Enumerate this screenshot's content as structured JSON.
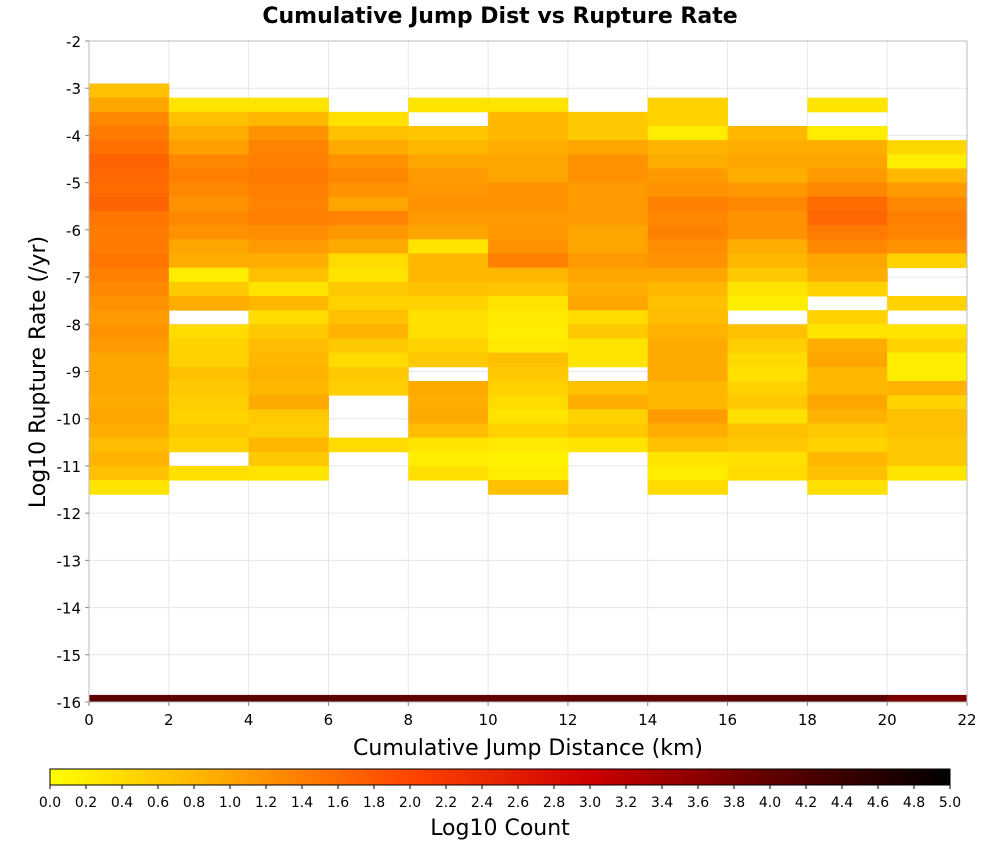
{
  "chart_data": {
    "type": "heatmap",
    "title": "Cumulative Jump Dist vs Rupture Rate",
    "xlabel": "Cumulative Jump Distance (km)",
    "ylabel": "Log10 Rupture Rate (/yr)",
    "colorbar_label": "Log10 Count",
    "xlim": [
      0,
      22
    ],
    "ylim": [
      -16,
      -2
    ],
    "x_ticks": [
      "0",
      "2",
      "4",
      "6",
      "8",
      "10",
      "12",
      "14",
      "16",
      "18",
      "20",
      "22"
    ],
    "y_ticks": [
      "-2",
      "-3",
      "-4",
      "-5",
      "-6",
      "-7",
      "-8",
      "-9",
      "-10",
      "-11",
      "-12",
      "-13",
      "-14",
      "-15",
      "-16"
    ],
    "colorbar_ticks": [
      "0.0",
      "0.2",
      "0.4",
      "0.6",
      "0.8",
      "1.0",
      "1.2",
      "1.4",
      "1.6",
      "1.8",
      "2.0",
      "2.2",
      "2.4",
      "2.6",
      "2.8",
      "3.0",
      "3.2",
      "3.4",
      "3.6",
      "3.8",
      "4.0",
      "4.2",
      "4.4",
      "4.6",
      "4.8",
      "5.0"
    ],
    "colorbar_range": [
      0,
      5
    ],
    "grid": true,
    "colormap": [
      "#ffff00",
      "#ffa500",
      "#ff4500",
      "#cc0000",
      "#600000",
      "#000000"
    ],
    "x_bin_width": 2,
    "y_bin_height": 0.3,
    "columns": [
      {
        "x": 0,
        "values": [
          [
            -3.05,
            0.7
          ],
          [
            -3.35,
            1.0
          ],
          [
            -3.65,
            1.3
          ],
          [
            -3.95,
            1.45
          ],
          [
            -4.25,
            1.55
          ],
          [
            -4.55,
            1.7
          ],
          [
            -4.85,
            1.65
          ],
          [
            -5.15,
            1.6
          ],
          [
            -5.45,
            1.7
          ],
          [
            -5.75,
            1.5
          ],
          [
            -6.05,
            1.45
          ],
          [
            -6.35,
            1.45
          ],
          [
            -6.65,
            1.5
          ],
          [
            -6.95,
            1.4
          ],
          [
            -7.25,
            1.3
          ],
          [
            -7.55,
            1.2
          ],
          [
            -7.85,
            1.1
          ],
          [
            -8.15,
            1.2
          ],
          [
            -8.45,
            1.1
          ],
          [
            -8.75,
            1.0
          ],
          [
            -9.05,
            1.0
          ],
          [
            -9.35,
            1.0
          ],
          [
            -9.65,
            0.95
          ],
          [
            -9.95,
            1.0
          ],
          [
            -10.25,
            0.9
          ],
          [
            -10.55,
            0.75
          ],
          [
            -10.85,
            0.85
          ],
          [
            -11.15,
            0.7
          ],
          [
            -11.45,
            0.3
          ]
        ]
      },
      {
        "x": 2,
        "values": [
          [
            -3.35,
            0.3
          ],
          [
            -3.65,
            0.7
          ],
          [
            -3.95,
            0.9
          ],
          [
            -4.25,
            1.05
          ],
          [
            -4.55,
            1.3
          ],
          [
            -4.85,
            1.4
          ],
          [
            -5.15,
            1.3
          ],
          [
            -5.45,
            1.2
          ],
          [
            -5.75,
            1.3
          ],
          [
            -6.05,
            1.2
          ],
          [
            -6.35,
            1.0
          ],
          [
            -6.65,
            0.9
          ],
          [
            -6.95,
            0.2
          ],
          [
            -7.25,
            0.6
          ],
          [
            -7.55,
            0.9
          ],
          [
            -8.15,
            0.4
          ],
          [
            -8.45,
            0.5
          ],
          [
            -8.75,
            0.5
          ],
          [
            -9.05,
            0.7
          ],
          [
            -9.35,
            0.6
          ],
          [
            -9.65,
            0.55
          ],
          [
            -9.95,
            0.5
          ],
          [
            -10.25,
            0.6
          ],
          [
            -10.55,
            0.5
          ],
          [
            -11.15,
            0.35
          ]
        ]
      },
      {
        "x": 4,
        "values": [
          [
            -3.35,
            0.3
          ],
          [
            -3.65,
            0.8
          ],
          [
            -3.95,
            1.2
          ],
          [
            -4.25,
            1.35
          ],
          [
            -4.55,
            1.4
          ],
          [
            -4.85,
            1.45
          ],
          [
            -5.15,
            1.4
          ],
          [
            -5.45,
            1.35
          ],
          [
            -5.75,
            1.4
          ],
          [
            -6.05,
            1.25
          ],
          [
            -6.35,
            1.1
          ],
          [
            -6.65,
            0.9
          ],
          [
            -6.95,
            0.7
          ],
          [
            -7.25,
            0.3
          ],
          [
            -7.55,
            0.8
          ],
          [
            -7.85,
            0.4
          ],
          [
            -8.15,
            0.6
          ],
          [
            -8.45,
            0.75
          ],
          [
            -8.75,
            0.8
          ],
          [
            -9.05,
            0.85
          ],
          [
            -9.35,
            0.8
          ],
          [
            -9.65,
            0.95
          ],
          [
            -9.95,
            0.6
          ],
          [
            -10.25,
            0.55
          ],
          [
            -10.55,
            0.8
          ],
          [
            -10.85,
            0.6
          ],
          [
            -11.15,
            0.3
          ]
        ]
      },
      {
        "x": 6,
        "values": [
          [
            -3.65,
            0.35
          ],
          [
            -3.95,
            0.7
          ],
          [
            -4.25,
            0.95
          ],
          [
            -4.55,
            1.2
          ],
          [
            -4.85,
            1.3
          ],
          [
            -5.15,
            1.2
          ],
          [
            -5.45,
            1.0
          ],
          [
            -5.75,
            1.35
          ],
          [
            -6.05,
            1.15
          ],
          [
            -6.35,
            0.95
          ],
          [
            -6.65,
            0.4
          ],
          [
            -6.95,
            0.3
          ],
          [
            -7.25,
            0.6
          ],
          [
            -7.55,
            0.5
          ],
          [
            -7.85,
            0.7
          ],
          [
            -8.15,
            0.85
          ],
          [
            -8.45,
            0.6
          ],
          [
            -8.75,
            0.4
          ],
          [
            -9.05,
            0.6
          ],
          [
            -9.35,
            0.55
          ],
          [
            -10.55,
            0.4
          ]
        ]
      },
      {
        "x": 8,
        "values": [
          [
            -3.35,
            0.3
          ],
          [
            -3.95,
            0.65
          ],
          [
            -4.25,
            0.8
          ],
          [
            -4.55,
            1.0
          ],
          [
            -4.85,
            1.1
          ],
          [
            -5.15,
            1.15
          ],
          [
            -5.45,
            1.2
          ],
          [
            -5.75,
            1.1
          ],
          [
            -6.05,
            1.0
          ],
          [
            -6.35,
            0.3
          ],
          [
            -6.65,
            0.8
          ],
          [
            -6.95,
            0.8
          ],
          [
            -7.25,
            0.7
          ],
          [
            -7.55,
            0.5
          ],
          [
            -7.85,
            0.35
          ],
          [
            -8.15,
            0.35
          ],
          [
            -8.45,
            0.5
          ],
          [
            -8.75,
            0.6
          ],
          [
            -9.35,
            0.95
          ],
          [
            -9.65,
            0.9
          ],
          [
            -9.95,
            0.95
          ],
          [
            -10.25,
            0.75
          ],
          [
            -10.55,
            0.3
          ],
          [
            -10.85,
            0.2
          ],
          [
            -11.15,
            0.35
          ]
        ]
      },
      {
        "x": 10,
        "values": [
          [
            -3.35,
            0.3
          ],
          [
            -3.65,
            0.8
          ],
          [
            -3.95,
            0.8
          ],
          [
            -4.25,
            0.9
          ],
          [
            -4.55,
            1.0
          ],
          [
            -4.85,
            1.0
          ],
          [
            -5.15,
            1.2
          ],
          [
            -5.45,
            1.2
          ],
          [
            -5.75,
            1.1
          ],
          [
            -6.05,
            1.15
          ],
          [
            -6.35,
            1.2
          ],
          [
            -6.65,
            1.4
          ],
          [
            -6.95,
            0.8
          ],
          [
            -7.25,
            0.65
          ],
          [
            -7.55,
            0.3
          ],
          [
            -7.85,
            0.25
          ],
          [
            -8.15,
            0.2
          ],
          [
            -8.45,
            0.25
          ],
          [
            -8.75,
            0.7
          ],
          [
            -9.05,
            0.6
          ],
          [
            -9.35,
            0.5
          ],
          [
            -9.65,
            0.4
          ],
          [
            -9.95,
            0.3
          ],
          [
            -10.25,
            0.5
          ],
          [
            -10.55,
            0.25
          ],
          [
            -10.85,
            0.15
          ],
          [
            -11.15,
            0.2
          ],
          [
            -11.45,
            0.7
          ]
        ]
      },
      {
        "x": 12,
        "values": [
          [
            -3.65,
            0.6
          ],
          [
            -3.95,
            0.6
          ],
          [
            -4.25,
            1.0
          ],
          [
            -4.55,
            1.2
          ],
          [
            -4.85,
            1.2
          ],
          [
            -5.15,
            1.1
          ],
          [
            -5.45,
            1.1
          ],
          [
            -5.75,
            1.1
          ],
          [
            -6.05,
            1.0
          ],
          [
            -6.35,
            1.0
          ],
          [
            -6.65,
            1.1
          ],
          [
            -6.95,
            1.0
          ],
          [
            -7.25,
            0.9
          ],
          [
            -7.55,
            1.0
          ],
          [
            -7.85,
            0.4
          ],
          [
            -8.15,
            0.6
          ],
          [
            -8.45,
            0.3
          ],
          [
            -8.75,
            0.3
          ],
          [
            -9.35,
            0.7
          ],
          [
            -9.65,
            0.9
          ],
          [
            -9.95,
            0.5
          ],
          [
            -10.25,
            0.6
          ],
          [
            -10.55,
            0.3
          ]
        ]
      },
      {
        "x": 14,
        "values": [
          [
            -3.35,
            0.5
          ],
          [
            -3.65,
            0.5
          ],
          [
            -3.95,
            0.2
          ],
          [
            -4.25,
            0.85
          ],
          [
            -4.55,
            0.9
          ],
          [
            -4.85,
            1.1
          ],
          [
            -5.15,
            1.2
          ],
          [
            -5.45,
            1.4
          ],
          [
            -5.75,
            1.3
          ],
          [
            -6.05,
            1.35
          ],
          [
            -6.35,
            1.25
          ],
          [
            -6.65,
            1.2
          ],
          [
            -6.95,
            1.0
          ],
          [
            -7.25,
            0.8
          ],
          [
            -7.55,
            0.7
          ],
          [
            -7.85,
            0.75
          ],
          [
            -8.15,
            0.85
          ],
          [
            -8.45,
            0.95
          ],
          [
            -8.75,
            0.95
          ],
          [
            -9.05,
            0.95
          ],
          [
            -9.35,
            0.8
          ],
          [
            -9.65,
            0.8
          ],
          [
            -9.95,
            1.1
          ],
          [
            -10.25,
            0.9
          ],
          [
            -10.55,
            0.7
          ],
          [
            -10.85,
            0.3
          ],
          [
            -11.15,
            0.2
          ],
          [
            -11.45,
            0.4
          ]
        ]
      },
      {
        "x": 16,
        "values": [
          [
            -3.95,
            0.8
          ],
          [
            -4.25,
            0.9
          ],
          [
            -4.55,
            1.0
          ],
          [
            -4.85,
            0.9
          ],
          [
            -5.15,
            1.15
          ],
          [
            -5.45,
            1.3
          ],
          [
            -5.75,
            1.2
          ],
          [
            -6.05,
            1.2
          ],
          [
            -6.35,
            0.9
          ],
          [
            -6.65,
            0.8
          ],
          [
            -6.95,
            0.6
          ],
          [
            -7.25,
            0.3
          ],
          [
            -7.55,
            0.2
          ],
          [
            -8.15,
            0.7
          ],
          [
            -8.45,
            0.55
          ],
          [
            -8.75,
            0.4
          ],
          [
            -9.05,
            0.35
          ],
          [
            -9.35,
            0.5
          ],
          [
            -9.65,
            0.6
          ],
          [
            -9.95,
            0.35
          ],
          [
            -10.25,
            0.7
          ],
          [
            -10.55,
            0.6
          ],
          [
            -10.85,
            0.35
          ],
          [
            -11.15,
            0.4
          ]
        ]
      },
      {
        "x": 18,
        "values": [
          [
            -3.35,
            0.3
          ],
          [
            -3.95,
            0.2
          ],
          [
            -4.25,
            0.9
          ],
          [
            -4.55,
            1.0
          ],
          [
            -4.85,
            1.1
          ],
          [
            -5.15,
            1.3
          ],
          [
            -5.45,
            1.6
          ],
          [
            -5.75,
            1.65
          ],
          [
            -6.05,
            1.45
          ],
          [
            -6.35,
            1.3
          ],
          [
            -6.65,
            1.0
          ],
          [
            -6.95,
            0.9
          ],
          [
            -7.25,
            0.5
          ],
          [
            -7.85,
            0.5
          ],
          [
            -8.15,
            0.3
          ],
          [
            -8.45,
            0.9
          ],
          [
            -8.75,
            1.0
          ],
          [
            -9.05,
            0.8
          ],
          [
            -9.35,
            0.8
          ],
          [
            -9.65,
            1.0
          ],
          [
            -9.95,
            0.85
          ],
          [
            -10.25,
            0.6
          ],
          [
            -10.55,
            0.5
          ],
          [
            -10.85,
            0.8
          ],
          [
            -11.15,
            0.7
          ],
          [
            -11.45,
            0.35
          ]
        ]
      },
      {
        "x": 20,
        "values": [
          [
            -4.25,
            0.45
          ],
          [
            -4.55,
            0.2
          ],
          [
            -4.85,
            0.8
          ],
          [
            -5.15,
            1.1
          ],
          [
            -5.45,
            1.3
          ],
          [
            -5.75,
            1.4
          ],
          [
            -6.05,
            1.35
          ],
          [
            -6.35,
            1.2
          ],
          [
            -6.65,
            0.5
          ],
          [
            -7.55,
            0.5
          ],
          [
            -8.15,
            0.3
          ],
          [
            -8.45,
            0.5
          ],
          [
            -8.75,
            0.2
          ],
          [
            -9.05,
            0.2
          ],
          [
            -9.35,
            0.85
          ],
          [
            -9.65,
            0.5
          ],
          [
            -9.95,
            0.7
          ],
          [
            -10.25,
            0.7
          ],
          [
            -10.55,
            0.6
          ],
          [
            -10.85,
            0.6
          ],
          [
            -11.15,
            0.3
          ]
        ]
      }
    ],
    "bottom_row": {
      "y": -15.9,
      "values": [
        4.05,
        4.05,
        4.05,
        4.05,
        4.0,
        4.0,
        4.05,
        4.0,
        4.05,
        4.05,
        3.75
      ]
    }
  }
}
